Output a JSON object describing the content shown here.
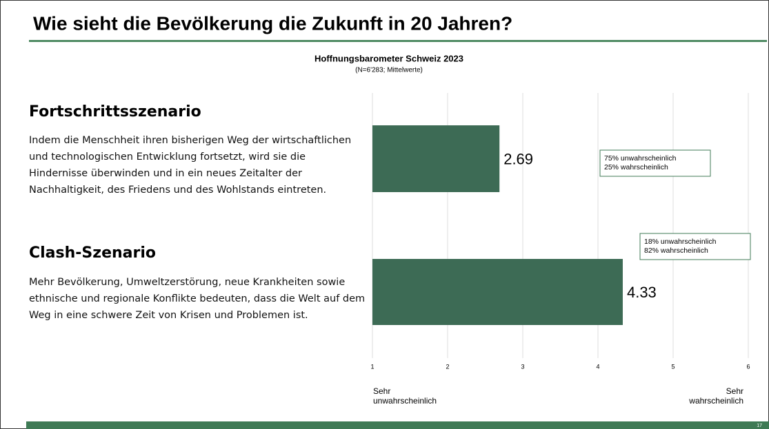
{
  "slide": {
    "title": "Wie sieht die Bevölkerung die Zukunft in 20 Jahren?",
    "page_number": "17",
    "descriptions": [
      "Indem die Menschheit ihren bisherigen Weg der wirtschaftlichen und technologischen Entwicklung fortsetzt, wird sie die Hindernisse überwinden und in ein neues Zeitalter der Nachhaltigkeit, des Friedens und des Wohlstands eintreten.",
      "Mehr Bevölkerung, Umweltzerstörung, neue Krankheiten sowie ethnische und regionale Konflikte bedeuten, dass die Welt auf dem Weg in eine schwere Zeit von Krisen und Problemen ist."
    ]
  },
  "chart_data": {
    "type": "barh",
    "title": "Hoffnungsbarometer Schweiz 2023",
    "subtitle": "(N=6'283; Mittelwerte)",
    "categories": [
      "Fortschrittsszenario",
      "Clash-Szenario"
    ],
    "values": [
      2.69,
      4.33
    ],
    "color": "#3d6b55",
    "xlim": [
      1,
      6
    ],
    "xticks": [
      1,
      2,
      3,
      4,
      5,
      6
    ],
    "grid": true,
    "x_label_left": [
      "Sehr",
      "unwahrscheinlich"
    ],
    "x_label_right": [
      "Sehr",
      "wahrscheinlich"
    ],
    "annotations": [
      [
        "75% unwahrscheinlich",
        "25% wahrscheinlich"
      ],
      [
        "18% unwahrscheinlich",
        "82% wahrscheinlich"
      ]
    ]
  }
}
